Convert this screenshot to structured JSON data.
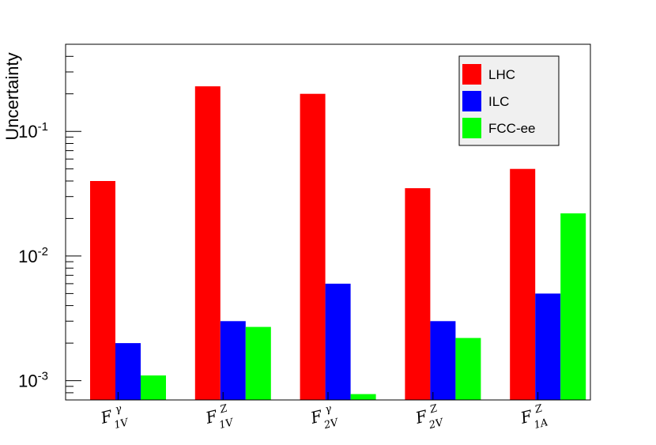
{
  "chart_data": {
    "type": "bar",
    "ylabel": "Uncertainty",
    "yscale": "log",
    "ylim": [
      0.0007,
      0.5
    ],
    "y_ticks": [
      {
        "value": 0.001,
        "base": "10",
        "exp": "-3"
      },
      {
        "value": 0.01,
        "base": "10",
        "exp": "-2"
      },
      {
        "value": 0.1,
        "base": "10",
        "exp": "-1"
      }
    ],
    "categories": [
      {
        "main": "F",
        "sup": "γ",
        "sub": "1V"
      },
      {
        "main": "F",
        "sup": "Z",
        "sub": "1V"
      },
      {
        "main": "F",
        "sup": "γ",
        "sub": "2V"
      },
      {
        "main": "F",
        "sup": "Z",
        "sub": "2V"
      },
      {
        "main": "F",
        "sup": "Z",
        "sub": "1A"
      }
    ],
    "series": [
      {
        "name": "LHC",
        "color": "#ff0000",
        "values": [
          0.04,
          0.23,
          0.2,
          0.035,
          0.05
        ]
      },
      {
        "name": "ILC",
        "color": "#0000ff",
        "values": [
          0.002,
          0.003,
          0.006,
          0.003,
          0.005
        ]
      },
      {
        "name": "FCC-ee",
        "color": "#00ff00",
        "values": [
          0.0011,
          0.0027,
          0.00078,
          0.0022,
          0.022
        ]
      }
    ],
    "legend": {
      "position": "top-right",
      "background": "#f0f0f0"
    },
    "grid": false
  }
}
